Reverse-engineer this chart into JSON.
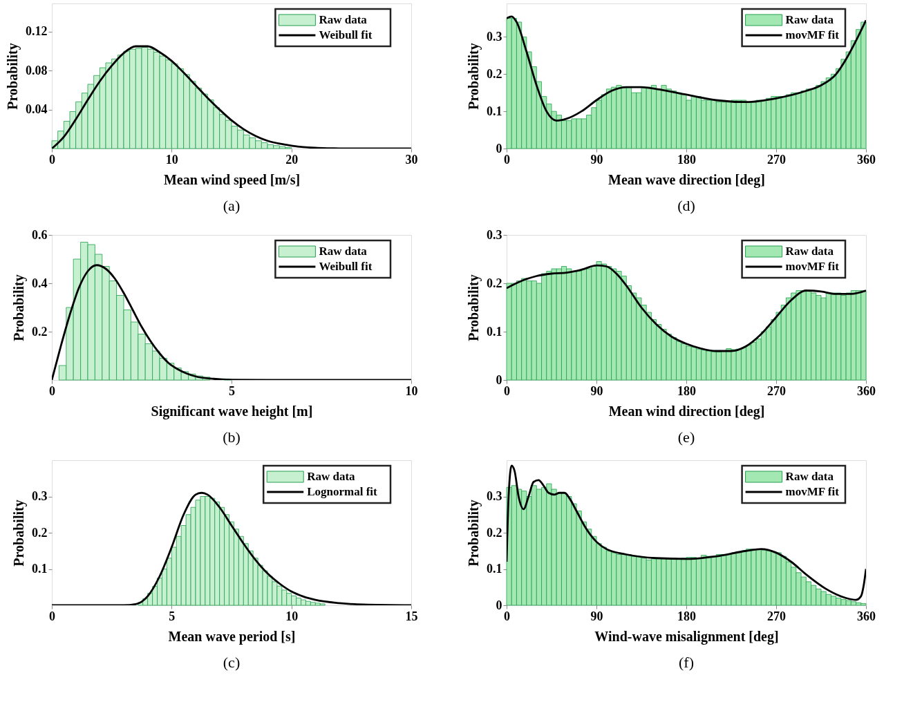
{
  "chart_data": [
    {
      "type": "histogram",
      "xlabel": "Mean wind speed [m/s]",
      "ylabel": "Probability",
      "xlim": [
        0,
        30
      ],
      "xticks": [
        0,
        10,
        20,
        30
      ],
      "ylim": [
        0,
        0.149
      ],
      "yticks": [
        0.04,
        0.08,
        0.12
      ],
      "grid": false,
      "legend": "top right",
      "annotations": [
        "(a)"
      ],
      "series": [
        {
          "name": "Raw data",
          "type": "histogram",
          "color": "#c6f0d0",
          "bins": [
            0,
            0.5,
            1,
            1.5,
            2,
            2.5,
            3,
            3.5,
            4,
            4.5,
            5,
            5.5,
            6,
            6.5,
            7,
            7.5,
            8,
            8.5,
            9,
            9.5,
            10,
            10.5,
            11,
            11.5,
            12,
            12.5,
            13,
            13.5,
            14,
            14.5,
            15,
            15.5,
            16,
            16.5,
            17,
            17.5,
            18,
            18.5,
            19,
            19.5,
            20
          ],
          "values": [
            0.008,
            0.018,
            0.028,
            0.038,
            0.048,
            0.057,
            0.066,
            0.075,
            0.083,
            0.088,
            0.092,
            0.096,
            0.1,
            0.102,
            0.103,
            0.104,
            0.102,
            0.099,
            0.095,
            0.091,
            0.087,
            0.082,
            0.076,
            0.069,
            0.062,
            0.056,
            0.05,
            0.042,
            0.035,
            0.029,
            0.023,
            0.019,
            0.014,
            0.011,
            0.008,
            0.006,
            0.004,
            0.003,
            0.002,
            0.001
          ]
        },
        {
          "name": "Weibull fit",
          "type": "line",
          "color": "#000000",
          "x": [
            0,
            1,
            2,
            3,
            4,
            5,
            6,
            7,
            8,
            9,
            10,
            11,
            12,
            13,
            14,
            15,
            16,
            17,
            18,
            19,
            20,
            21,
            22,
            23,
            24,
            25,
            26,
            27,
            28,
            29,
            30
          ],
          "values": [
            0,
            0.012,
            0.03,
            0.05,
            0.069,
            0.085,
            0.098,
            0.105,
            0.105,
            0.099,
            0.09,
            0.078,
            0.065,
            0.052,
            0.04,
            0.029,
            0.02,
            0.013,
            0.008,
            0.005,
            0.003,
            0.0015,
            0.0007,
            0.0003,
            0.0001,
            0,
            0,
            0,
            0,
            0,
            0
          ]
        }
      ]
    },
    {
      "type": "histogram",
      "xlabel": "Mean wave direction [deg]",
      "ylabel": "Probability",
      "xlim": [
        0,
        360
      ],
      "xticks": [
        0,
        90,
        180,
        270,
        360
      ],
      "ylim": [
        0,
        0.39
      ],
      "yticks": [
        0,
        0.1,
        0.2,
        0.3
      ],
      "grid": false,
      "legend": "top right",
      "annotations": [
        "(d)"
      ],
      "series": [
        {
          "name": "Raw data",
          "type": "histogram",
          "color": "#a3e8b3",
          "bins": [
            0,
            5,
            10,
            15,
            20,
            25,
            30,
            35,
            40,
            45,
            50,
            55,
            60,
            65,
            70,
            75,
            80,
            85,
            90,
            95,
            100,
            105,
            110,
            115,
            120,
            125,
            130,
            135,
            140,
            145,
            150,
            155,
            160,
            165,
            170,
            175,
            180,
            185,
            190,
            195,
            200,
            205,
            210,
            215,
            220,
            225,
            230,
            235,
            240,
            245,
            250,
            255,
            260,
            265,
            270,
            275,
            280,
            285,
            290,
            295,
            300,
            305,
            310,
            315,
            320,
            325,
            330,
            335,
            340,
            345,
            350,
            355,
            360
          ],
          "values": [
            0.35,
            0.35,
            0.34,
            0.3,
            0.26,
            0.22,
            0.18,
            0.14,
            0.12,
            0.1,
            0.09,
            0.075,
            0.075,
            0.08,
            0.08,
            0.08,
            0.09,
            0.11,
            0.13,
            0.145,
            0.16,
            0.165,
            0.17,
            0.165,
            0.165,
            0.15,
            0.15,
            0.165,
            0.165,
            0.17,
            0.16,
            0.17,
            0.16,
            0.155,
            0.15,
            0.145,
            0.13,
            0.14,
            0.14,
            0.13,
            0.13,
            0.13,
            0.125,
            0.125,
            0.125,
            0.13,
            0.13,
            0.13,
            0.125,
            0.125,
            0.13,
            0.13,
            0.135,
            0.14,
            0.14,
            0.14,
            0.145,
            0.15,
            0.15,
            0.155,
            0.16,
            0.16,
            0.17,
            0.18,
            0.19,
            0.2,
            0.215,
            0.24,
            0.26,
            0.29,
            0.32,
            0.34
          ]
        },
        {
          "name": "movMF fit",
          "type": "line",
          "color": "#000000",
          "x": [
            0,
            5,
            10,
            20,
            30,
            40,
            50,
            60,
            75,
            90,
            105,
            120,
            135,
            150,
            180,
            210,
            240,
            270,
            300,
            315,
            330,
            340,
            350,
            360
          ],
          "values": [
            0.35,
            0.355,
            0.34,
            0.26,
            0.17,
            0.1,
            0.075,
            0.08,
            0.1,
            0.13,
            0.155,
            0.165,
            0.165,
            0.16,
            0.145,
            0.13,
            0.125,
            0.135,
            0.155,
            0.17,
            0.2,
            0.24,
            0.29,
            0.345
          ]
        }
      ]
    },
    {
      "type": "histogram",
      "xlabel": "Significant wave height [m]",
      "ylabel": "Probability",
      "xlim": [
        0,
        10
      ],
      "xticks": [
        0,
        5,
        10
      ],
      "ylim": [
        0,
        0.6
      ],
      "yticks": [
        0.2,
        0.4,
        0.6
      ],
      "grid": false,
      "legend": "top right",
      "annotations": [
        "(b)"
      ],
      "series": [
        {
          "name": "Raw data",
          "type": "histogram",
          "color": "#c6f0d0",
          "bins": [
            0.2,
            0.4,
            0.6,
            0.8,
            1.0,
            1.2,
            1.4,
            1.6,
            1.8,
            2.0,
            2.2,
            2.4,
            2.6,
            2.8,
            3.0,
            3.2,
            3.4,
            3.6,
            3.8,
            4.0,
            4.2,
            4.4,
            4.6,
            4.8,
            5.0
          ],
          "values": [
            0.06,
            0.3,
            0.5,
            0.57,
            0.56,
            0.52,
            0.47,
            0.41,
            0.35,
            0.29,
            0.24,
            0.19,
            0.15,
            0.12,
            0.09,
            0.07,
            0.05,
            0.035,
            0.025,
            0.017,
            0.012,
            null,
            null,
            0.003
          ]
        },
        {
          "name": "Weibull fit",
          "type": "line",
          "color": "#000000",
          "x": [
            0,
            0.25,
            0.5,
            0.75,
            1,
            1.25,
            1.5,
            1.75,
            2,
            2.25,
            2.5,
            2.75,
            3,
            3.25,
            3.5,
            3.75,
            4,
            4.5,
            5,
            6,
            10
          ],
          "values": [
            0,
            0.14,
            0.27,
            0.38,
            0.45,
            0.475,
            0.46,
            0.42,
            0.36,
            0.29,
            0.22,
            0.16,
            0.11,
            0.07,
            0.045,
            0.027,
            0.015,
            0.005,
            0.001,
            0,
            0
          ]
        }
      ]
    },
    {
      "type": "histogram",
      "xlabel": "Mean wind direction [deg]",
      "ylabel": "Probability",
      "xlim": [
        0,
        360
      ],
      "xticks": [
        0,
        90,
        180,
        270,
        360
      ],
      "ylim": [
        0,
        0.3
      ],
      "yticks": [
        0,
        0.1,
        0.2,
        0.3
      ],
      "grid": false,
      "legend": "top right",
      "annotations": [
        "(e)"
      ],
      "series": [
        {
          "name": "Raw data",
          "type": "histogram",
          "color": "#a3e8b3",
          "bins": [
            0,
            5,
            10,
            15,
            20,
            25,
            30,
            35,
            40,
            45,
            50,
            55,
            60,
            65,
            70,
            75,
            80,
            85,
            90,
            95,
            100,
            105,
            110,
            115,
            120,
            125,
            130,
            135,
            140,
            145,
            150,
            155,
            160,
            165,
            170,
            175,
            180,
            185,
            190,
            195,
            200,
            205,
            210,
            215,
            220,
            225,
            230,
            235,
            240,
            245,
            250,
            255,
            260,
            265,
            270,
            275,
            280,
            285,
            290,
            295,
            300,
            305,
            310,
            315,
            320,
            325,
            330,
            335,
            340,
            345,
            350,
            355,
            360
          ],
          "values": [
            0.2,
            0.2,
            0.205,
            0.21,
            0.205,
            0.205,
            0.2,
            0.22,
            0.225,
            0.23,
            0.23,
            0.235,
            0.23,
            0.225,
            0.225,
            0.23,
            0.23,
            0.235,
            0.245,
            0.24,
            0.235,
            0.23,
            0.225,
            0.215,
            0.195,
            0.18,
            0.17,
            0.155,
            0.14,
            0.125,
            0.115,
            0.105,
            0.095,
            0.088,
            0.08,
            0.075,
            0.07,
            0.068,
            0.064,
            0.062,
            0.06,
            0.058,
            0.058,
            0.06,
            0.065,
            0.063,
            0.064,
            0.067,
            0.072,
            0.078,
            0.085,
            0.1,
            0.11,
            0.125,
            0.14,
            0.155,
            0.17,
            0.18,
            0.185,
            0.185,
            0.185,
            0.18,
            0.175,
            0.17,
            0.18,
            0.18,
            0.18,
            0.175,
            0.18,
            0.185,
            0.185,
            0.185
          ]
        },
        {
          "name": "movMF fit",
          "type": "line",
          "color": "#000000",
          "x": [
            0,
            15,
            30,
            45,
            60,
            75,
            90,
            100,
            110,
            120,
            135,
            150,
            165,
            180,
            195,
            210,
            225,
            240,
            255,
            270,
            285,
            300,
            315,
            330,
            345,
            360
          ],
          "values": [
            0.19,
            0.205,
            0.215,
            0.22,
            0.222,
            0.228,
            0.237,
            0.235,
            0.22,
            0.195,
            0.15,
            0.115,
            0.09,
            0.075,
            0.065,
            0.06,
            0.06,
            0.07,
            0.095,
            0.13,
            0.165,
            0.185,
            0.183,
            0.178,
            0.178,
            0.185
          ]
        }
      ]
    },
    {
      "type": "histogram",
      "xlabel": "Mean wave period [s]",
      "ylabel": "Probability",
      "xlim": [
        0,
        15
      ],
      "xticks": [
        0,
        5,
        10,
        15
      ],
      "ylim": [
        0,
        0.4
      ],
      "yticks": [
        0.1,
        0.2,
        0.3
      ],
      "grid": false,
      "legend": "top right",
      "annotations": [
        "(c)"
      ],
      "series": [
        {
          "name": "Raw data",
          "type": "histogram",
          "color": "#c6f0d0",
          "bins": [
            3.4,
            3.6,
            3.8,
            4.0,
            4.2,
            4.4,
            4.6,
            4.8,
            5.0,
            5.2,
            5.4,
            5.6,
            5.8,
            6.0,
            6.2,
            6.4,
            6.6,
            6.8,
            7.0,
            7.2,
            7.4,
            7.6,
            7.8,
            8.0,
            8.2,
            8.4,
            8.6,
            8.8,
            9.0,
            9.2,
            9.4,
            9.6,
            9.8,
            10.0,
            10.2,
            10.4,
            10.6,
            10.8,
            11.0,
            11.2,
            11.4
          ],
          "values": [
            null,
            0.008,
            0.018,
            0.033,
            0.052,
            0.075,
            0.1,
            0.13,
            0.16,
            0.19,
            0.22,
            0.25,
            0.27,
            0.29,
            0.3,
            0.3,
            0.295,
            0.285,
            0.27,
            0.25,
            0.23,
            0.21,
            0.19,
            0.17,
            0.15,
            0.13,
            0.11,
            0.095,
            0.08,
            0.065,
            0.053,
            0.042,
            0.033,
            0.026,
            0.02,
            0.015,
            0.011,
            0.008,
            0.006,
            0.004
          ]
        },
        {
          "name": "Lognormal fit",
          "type": "line",
          "color": "#000000",
          "x": [
            0,
            3,
            3.5,
            4,
            4.5,
            5,
            5.5,
            6,
            6.25,
            6.5,
            7,
            7.5,
            8,
            8.5,
            9,
            9.5,
            10,
            10.5,
            11,
            12,
            13,
            15
          ],
          "values": [
            0,
            0,
            0.003,
            0.025,
            0.08,
            0.16,
            0.25,
            0.305,
            0.31,
            0.305,
            0.27,
            0.22,
            0.17,
            0.125,
            0.088,
            0.06,
            0.038,
            0.024,
            0.015,
            0.006,
            0.002,
            0
          ]
        }
      ]
    },
    {
      "type": "histogram",
      "xlabel": "Wind-wave misalignment [deg]",
      "ylabel": "Probability",
      "xlim": [
        0,
        360
      ],
      "xticks": [
        0,
        90,
        180,
        270,
        360
      ],
      "ylim": [
        0,
        0.4
      ],
      "yticks": [
        0,
        0.1,
        0.2,
        0.3
      ],
      "grid": false,
      "legend": "top right",
      "annotations": [
        "(f)"
      ],
      "series": [
        {
          "name": "Raw data",
          "type": "histogram",
          "color": "#a3e8b3",
          "bins": [
            0,
            5,
            10,
            15,
            20,
            25,
            30,
            35,
            40,
            45,
            50,
            55,
            60,
            65,
            70,
            75,
            80,
            85,
            90,
            95,
            100,
            105,
            110,
            115,
            120,
            125,
            130,
            135,
            140,
            145,
            150,
            155,
            160,
            165,
            170,
            175,
            180,
            185,
            190,
            195,
            200,
            205,
            210,
            215,
            220,
            225,
            230,
            235,
            240,
            245,
            250,
            255,
            260,
            265,
            270,
            275,
            280,
            285,
            290,
            295,
            300,
            305,
            310,
            315,
            320,
            325,
            330,
            335,
            340,
            345,
            350,
            355,
            360
          ],
          "values": [
            0.325,
            0.33,
            0.32,
            0.315,
            0.3,
            0.33,
            0.32,
            0.325,
            0.335,
            0.32,
            0.31,
            0.31,
            0.3,
            0.28,
            0.26,
            0.23,
            0.21,
            0.19,
            0.17,
            0.16,
            0.15,
            0.145,
            0.14,
            0.14,
            0.14,
            0.135,
            0.135,
            0.13,
            0.125,
            0.128,
            0.13,
            0.13,
            0.13,
            0.13,
            0.128,
            0.13,
            0.132,
            0.132,
            0.13,
            0.138,
            0.135,
            0.135,
            0.14,
            0.14,
            0.14,
            0.145,
            0.148,
            0.15,
            0.155,
            0.155,
            0.155,
            0.152,
            0.15,
            0.148,
            0.145,
            0.135,
            0.12,
            0.105,
            0.09,
            0.078,
            0.065,
            0.055,
            0.045,
            0.038,
            0.03,
            0.025,
            0.02,
            0.016,
            0.013,
            0.01,
            0.007,
            0.005
          ]
        },
        {
          "name": "movMF fit",
          "type": "line",
          "color": "#000000",
          "x": [
            0,
            2,
            5,
            8,
            12,
            17,
            22,
            27,
            32,
            37,
            42,
            48,
            53,
            58,
            63,
            70,
            80,
            90,
            100,
            120,
            150,
            180,
            210,
            240,
            255,
            270,
            285,
            300,
            320,
            340,
            350,
            355,
            358,
            360
          ],
          "values": [
            0.12,
            0.3,
            0.385,
            0.37,
            0.3,
            0.265,
            0.3,
            0.34,
            0.345,
            0.33,
            0.31,
            0.305,
            0.31,
            0.31,
            0.295,
            0.26,
            0.21,
            0.175,
            0.155,
            0.14,
            0.13,
            0.128,
            0.135,
            0.15,
            0.155,
            0.145,
            0.12,
            0.085,
            0.045,
            0.02,
            0.015,
            0.025,
            0.06,
            0.1
          ]
        }
      ]
    }
  ]
}
